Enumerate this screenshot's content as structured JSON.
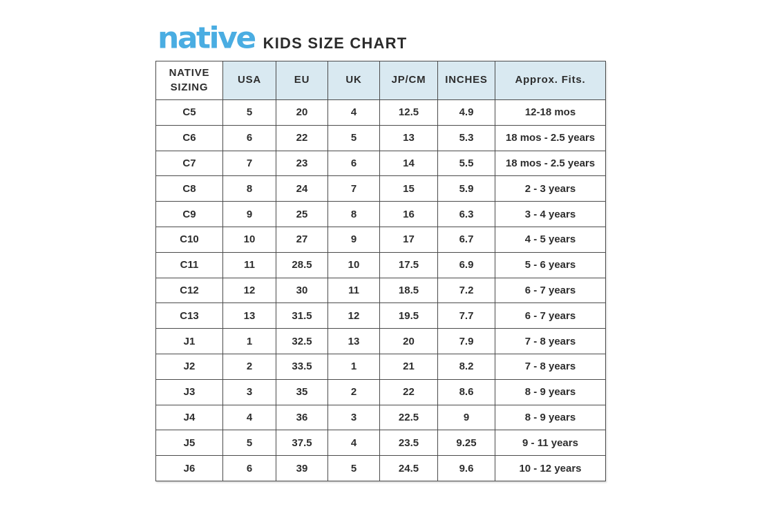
{
  "header": {
    "logo_text": "native",
    "title": "KIDS SIZE CHART"
  },
  "colors": {
    "logo_blue": "#4aade2",
    "header_fill": "#d9e9f1",
    "border": "#4a4a4a",
    "text": "#2d2d2d",
    "background": "#ffffff"
  },
  "chart_data": {
    "type": "table",
    "title": "KIDS SIZE CHART",
    "columns": [
      "NATIVE SIZING",
      "USA",
      "EU",
      "UK",
      "JP/CM",
      "INCHES",
      "Approx. Fits."
    ],
    "rows": [
      [
        "C5",
        "5",
        "20",
        "4",
        "12.5",
        "4.9",
        "12-18 mos"
      ],
      [
        "C6",
        "6",
        "22",
        "5",
        "13",
        "5.3",
        "18 mos - 2.5 years"
      ],
      [
        "C7",
        "7",
        "23",
        "6",
        "14",
        "5.5",
        "18 mos - 2.5 years"
      ],
      [
        "C8",
        "8",
        "24",
        "7",
        "15",
        "5.9",
        "2 - 3 years"
      ],
      [
        "C9",
        "9",
        "25",
        "8",
        "16",
        "6.3",
        "3 - 4 years"
      ],
      [
        "C10",
        "10",
        "27",
        "9",
        "17",
        "6.7",
        "4 - 5 years"
      ],
      [
        "C11",
        "11",
        "28.5",
        "10",
        "17.5",
        "6.9",
        "5 - 6 years"
      ],
      [
        "C12",
        "12",
        "30",
        "11",
        "18.5",
        "7.2",
        "6 - 7 years"
      ],
      [
        "C13",
        "13",
        "31.5",
        "12",
        "19.5",
        "7.7",
        "6 - 7 years"
      ],
      [
        "J1",
        "1",
        "32.5",
        "13",
        "20",
        "7.9",
        "7 - 8 years"
      ],
      [
        "J2",
        "2",
        "33.5",
        "1",
        "21",
        "8.2",
        "7 - 8 years"
      ],
      [
        "J3",
        "3",
        "35",
        "2",
        "22",
        "8.6",
        "8 - 9 years"
      ],
      [
        "J4",
        "4",
        "36",
        "3",
        "22.5",
        "9",
        "8 - 9 years"
      ],
      [
        "J5",
        "5",
        "37.5",
        "4",
        "23.5",
        "9.25",
        "9 - 11 years"
      ],
      [
        "J6",
        "6",
        "39",
        "5",
        "24.5",
        "9.6",
        "10 - 12 years"
      ]
    ]
  }
}
